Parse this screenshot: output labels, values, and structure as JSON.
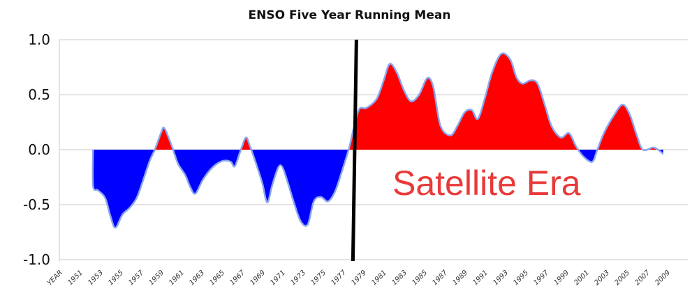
{
  "chart_data": {
    "type": "area",
    "title": "ENSO Five Year Running Mean",
    "xlabel": "",
    "ylabel": "",
    "ylim": [
      -1.0,
      1.0
    ],
    "xlim": [
      1949,
      2011
    ],
    "grid": true,
    "y_ticks": [
      "1.0",
      "0.5",
      "0.0",
      "-0.5",
      "-1.0"
    ],
    "y_tick_values": [
      1.0,
      0.5,
      0.0,
      -0.5,
      -1.0
    ],
    "x_ticks": [
      "YEAR",
      "1951",
      "1953",
      "1955",
      "1957",
      "1959",
      "1961",
      "1963",
      "1965",
      "1967",
      "1969",
      "1971",
      "1973",
      "1975",
      "1977",
      "1979",
      "1981",
      "1983",
      "1985",
      "1987",
      "1989",
      "1991",
      "1993",
      "1995",
      "1997",
      "1999",
      "2001",
      "2003",
      "2005",
      "2007",
      "2009"
    ],
    "colors": {
      "positive": "#ff0000",
      "negative": "#0000ff",
      "line": "#8aa6f0",
      "marker": "#000000",
      "annotation": "#e83a3a"
    },
    "annotation": {
      "text": "Satellite Era",
      "year": 1978.2
    },
    "series": [
      {
        "name": "ENSO five year running mean",
        "x": [
          1952.4,
          1952.4,
          1952.9,
          1953.6,
          1954.1,
          1954.6,
          1955.3,
          1956.0,
          1956.7,
          1957.3,
          1958.0,
          1958.5,
          1959.1,
          1959.4,
          1959.9,
          1960.3,
          1960.8,
          1961.5,
          1962.0,
          1962.5,
          1963.2,
          1963.9,
          1964.6,
          1965.3,
          1966.0,
          1966.4,
          1967.0,
          1967.5,
          1967.9,
          1968.4,
          1969.1,
          1969.6,
          1970.1,
          1970.7,
          1971.1,
          1971.6,
          1972.2,
          1972.9,
          1973.6,
          1974.2,
          1974.9,
          1975.6,
          1976.3,
          1977.0,
          1977.7,
          1978.2,
          1978.7,
          1979.4,
          1980.4,
          1981.1,
          1981.7,
          1982.4,
          1983.1,
          1983.8,
          1984.6,
          1985.4,
          1986.0,
          1986.7,
          1987.7,
          1988.4,
          1989.1,
          1989.8,
          1990.4,
          1991.1,
          1991.8,
          1992.7,
          1993.6,
          1994.2,
          1994.8,
          1995.6,
          1996.3,
          1997.0,
          1997.7,
          1998.6,
          1999.4,
          2000.1,
          2000.8,
          2001.7,
          2002.2,
          2002.9,
          2003.9,
          2004.7,
          2005.4,
          2006.1,
          2006.7,
          2007.7,
          2008.2,
          2008.7
        ],
        "y": [
          0.0,
          -0.33,
          -0.37,
          -0.44,
          -0.6,
          -0.71,
          -0.59,
          -0.53,
          -0.44,
          -0.29,
          -0.1,
          0.0,
          0.15,
          0.2,
          0.1,
          0.0,
          -0.13,
          -0.23,
          -0.34,
          -0.4,
          -0.28,
          -0.19,
          -0.13,
          -0.1,
          -0.11,
          -0.15,
          0.0,
          0.11,
          0.03,
          -0.1,
          -0.3,
          -0.48,
          -0.32,
          -0.16,
          -0.16,
          -0.29,
          -0.47,
          -0.65,
          -0.68,
          -0.47,
          -0.43,
          -0.47,
          -0.38,
          -0.19,
          0.02,
          0.22,
          0.37,
          0.38,
          0.46,
          0.63,
          0.78,
          0.7,
          0.54,
          0.44,
          0.5,
          0.65,
          0.57,
          0.22,
          0.13,
          0.22,
          0.34,
          0.36,
          0.28,
          0.47,
          0.7,
          0.87,
          0.82,
          0.66,
          0.6,
          0.63,
          0.6,
          0.41,
          0.21,
          0.11,
          0.15,
          0.03,
          -0.06,
          -0.11,
          0.0,
          0.16,
          0.32,
          0.41,
          0.32,
          0.13,
          0.0,
          0.02,
          0.0,
          -0.04
        ]
      }
    ]
  }
}
